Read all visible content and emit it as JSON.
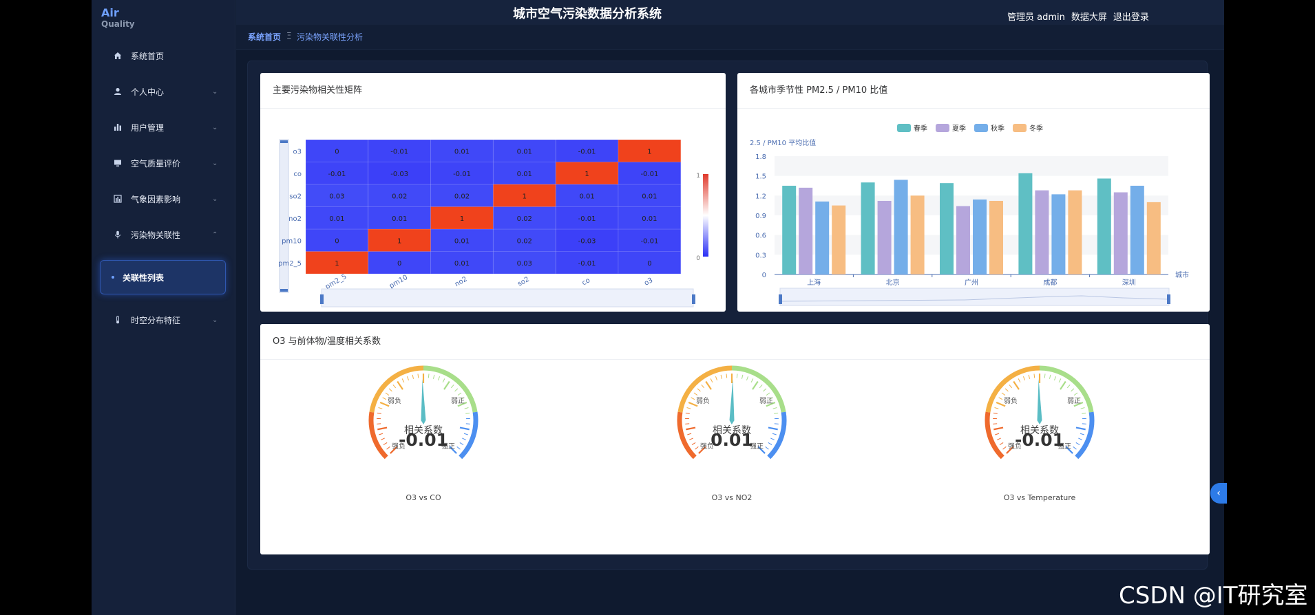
{
  "app": {
    "logo_line1": "Air",
    "logo_line2": "Quality",
    "title": "城市空气污染数据分析系统",
    "header_links": [
      "管理员 admin",
      "数据大屏",
      "退出登录"
    ]
  },
  "sidebar": {
    "items": [
      {
        "label": "系统首页",
        "icon": "home-icon",
        "chevron": ""
      },
      {
        "label": "个人中心",
        "icon": "user-icon",
        "chevron": "⌄"
      },
      {
        "label": "用户管理",
        "icon": "bar-chart-icon",
        "chevron": "⌄"
      },
      {
        "label": "空气质量评价",
        "icon": "monitor-icon",
        "chevron": "⌄"
      },
      {
        "label": "气象因素影响",
        "icon": "column-chart-icon",
        "chevron": "⌄"
      },
      {
        "label": "污染物关联性",
        "icon": "microphone-icon",
        "chevron": "⌃"
      },
      {
        "label": "时空分布特征",
        "icon": "thermometer-icon",
        "chevron": "⌄"
      }
    ],
    "active_sub": "关联性列表"
  },
  "breadcrumb": {
    "home": "系统首页",
    "separator": "Ξ",
    "current": "污染物关联性分析"
  },
  "cards": {
    "heatmap_title": "主要污染物相关性矩阵",
    "bar_title": "各城市季节性 PM2.5 / PM10 比值",
    "gauge_title": "O3 与前体物/温度相关系数"
  },
  "colors": {
    "accent": "#2d7be8",
    "heat_high": "#f0421c",
    "heat_low": "#3a3cf8"
  },
  "chart_data": [
    {
      "type": "heatmap",
      "x_categories": [
        "pm2_5",
        "pm10",
        "no2",
        "so2",
        "co",
        "o3"
      ],
      "y_categories": [
        "pm2_5",
        "pm10",
        "no2",
        "so2",
        "co",
        "o3"
      ],
      "matrix": [
        [
          1,
          0,
          0.01,
          0.03,
          -0.01,
          0
        ],
        [
          0,
          1,
          0.01,
          0.02,
          -0.03,
          -0.01
        ],
        [
          0.01,
          0.01,
          1,
          0.02,
          -0.01,
          0.01
        ],
        [
          0.03,
          0.02,
          0.02,
          1,
          0.01,
          0.01
        ],
        [
          -0.01,
          -0.03,
          -0.01,
          0.01,
          1,
          -0.01
        ],
        [
          0,
          -0.01,
          0.01,
          0.01,
          -0.01,
          1
        ]
      ],
      "visual_map_labels": [
        "1",
        "0"
      ],
      "visual_map_range": [
        0,
        1
      ]
    },
    {
      "type": "bar",
      "categories": [
        "上海",
        "北京",
        "广州",
        "成都",
        "深圳"
      ],
      "series": [
        {
          "name": "春季",
          "color": "#5fbfc4",
          "values": [
            1.35,
            1.4,
            1.39,
            1.54,
            1.46
          ]
        },
        {
          "name": "夏季",
          "color": "#b5a6dc",
          "values": [
            1.32,
            1.12,
            1.04,
            1.28,
            1.25
          ]
        },
        {
          "name": "秋季",
          "color": "#74aee9",
          "values": [
            1.11,
            1.44,
            1.14,
            1.22,
            1.35
          ]
        },
        {
          "name": "冬季",
          "color": "#f7bd82",
          "values": [
            1.05,
            1.2,
            1.12,
            1.28,
            1.1
          ]
        }
      ],
      "ylabel": "2.5 / PM10 平均比值",
      "xlabel": "城市",
      "yticks": [
        "0",
        "0.3",
        "0.6",
        "0.9",
        "1.2",
        "1.5",
        "1.8"
      ],
      "ylim": [
        0,
        1.8
      ],
      "legend_position": "top-center"
    },
    {
      "type": "gauge",
      "gauges": [
        {
          "label": "O3 vs CO",
          "value": -0.01,
          "display": "-0.01"
        },
        {
          "label": "O3 vs NO2",
          "value": 0.01,
          "display": "0.01"
        },
        {
          "label": "O3 vs Temperature",
          "value": -0.01,
          "display": "-0.01"
        }
      ],
      "center_text": "相关系数",
      "zone_labels": {
        "weak_negative": "弱负",
        "weak_positive": "弱正",
        "strong_negative": "强负",
        "strong_positive": "强正"
      },
      "range": [
        -1,
        1
      ]
    }
  ],
  "watermark": "CSDN @IT研究室",
  "collapse_icon": "‹"
}
